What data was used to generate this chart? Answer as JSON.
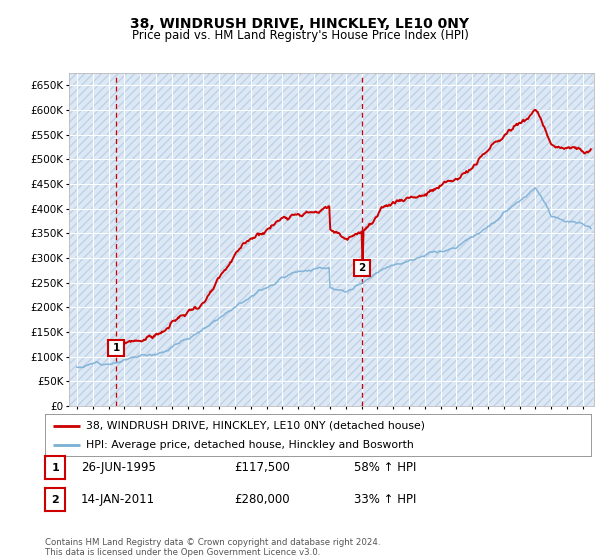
{
  "title": "38, WINDRUSH DRIVE, HINCKLEY, LE10 0NY",
  "subtitle": "Price paid vs. HM Land Registry's House Price Index (HPI)",
  "ylabel_ticks": [
    "£0",
    "£50K",
    "£100K",
    "£150K",
    "£200K",
    "£250K",
    "£300K",
    "£350K",
    "£400K",
    "£450K",
    "£500K",
    "£550K",
    "£600K",
    "£650K"
  ],
  "ytick_values": [
    0,
    50000,
    100000,
    150000,
    200000,
    250000,
    300000,
    350000,
    400000,
    450000,
    500000,
    550000,
    600000,
    650000
  ],
  "ylim": [
    0,
    675000
  ],
  "xlim_start": 1992.5,
  "xlim_end": 2025.7,
  "xtick_years": [
    1993,
    1994,
    1995,
    1996,
    1997,
    1998,
    1999,
    2000,
    2001,
    2002,
    2003,
    2004,
    2005,
    2006,
    2007,
    2008,
    2009,
    2010,
    2011,
    2012,
    2013,
    2014,
    2015,
    2016,
    2017,
    2018,
    2019,
    2020,
    2021,
    2022,
    2023,
    2024,
    2025
  ],
  "xtick_labels": [
    "93",
    "94",
    "95",
    "96",
    "97",
    "98",
    "99",
    "00",
    "01",
    "02",
    "03",
    "04",
    "05",
    "06",
    "07",
    "08",
    "09",
    "10",
    "11",
    "12",
    "13",
    "14",
    "15",
    "16",
    "17",
    "18",
    "19",
    "20",
    "21",
    "22",
    "23",
    "24",
    "25"
  ],
  "bg_color": "#dce9f5",
  "hatch_color": "#c0d0e8",
  "grid_color": "#ffffff",
  "sale1_x": 1995.487,
  "sale1_y": 117500,
  "sale1_label": "1",
  "sale1_date": "26-JUN-1995",
  "sale1_price": "£117,500",
  "sale1_hpi": "58% ↑ HPI",
  "sale2_x": 2011.037,
  "sale2_y": 280000,
  "sale2_label": "2",
  "sale2_date": "14-JAN-2011",
  "sale2_price": "£280,000",
  "sale2_hpi": "33% ↑ HPI",
  "legend_line1": "38, WINDRUSH DRIVE, HINCKLEY, LE10 0NY (detached house)",
  "legend_line2": "HPI: Average price, detached house, Hinckley and Bosworth",
  "footer": "Contains HM Land Registry data © Crown copyright and database right 2024.\nThis data is licensed under the Open Government Licence v3.0.",
  "red_line_color": "#cc0000",
  "blue_line_color": "#7bafd4",
  "vline_color": "#cc0000",
  "marker_box_color": "#cc0000",
  "title_fontsize": 10,
  "subtitle_fontsize": 8.5
}
